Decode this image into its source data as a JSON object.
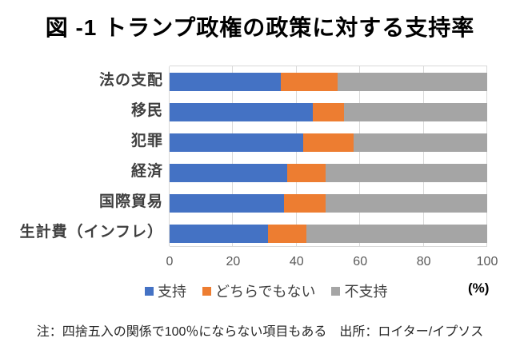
{
  "title": "図 -1 トランプ政権の政策に対する支持率",
  "note": "注：四捨五入の関係で100％にならない項目もある　出所：ロイター/イプソス",
  "chart_data": {
    "type": "bar",
    "stacked": true,
    "orientation": "horizontal",
    "title": "図 -1 トランプ政権の政策に対する支持率",
    "categories": [
      "法の支配",
      "移民",
      "犯罪",
      "経済",
      "国際貿易",
      "生計費（インフレ）"
    ],
    "series": [
      {
        "name": "支持",
        "color": "#4472C4",
        "values": [
          35,
          45,
          42,
          37,
          36,
          31
        ]
      },
      {
        "name": "どちらでもない",
        "color": "#ED7D31",
        "values": [
          18,
          10,
          16,
          12,
          13,
          12
        ]
      },
      {
        "name": "不支持",
        "color": "#A5A5A5",
        "values": [
          47,
          45,
          42,
          51,
          51,
          57
        ]
      }
    ],
    "xlim": [
      0,
      100
    ],
    "x_ticks": [
      "0",
      "20",
      "40",
      "60",
      "80",
      "100"
    ],
    "x_unit_label": "(%)",
    "grid": true,
    "legend_position": "bottom",
    "gridline_color": "#D9D9D9",
    "axis_text_color": "#595959",
    "category_text_color": "#3f3f3f"
  }
}
